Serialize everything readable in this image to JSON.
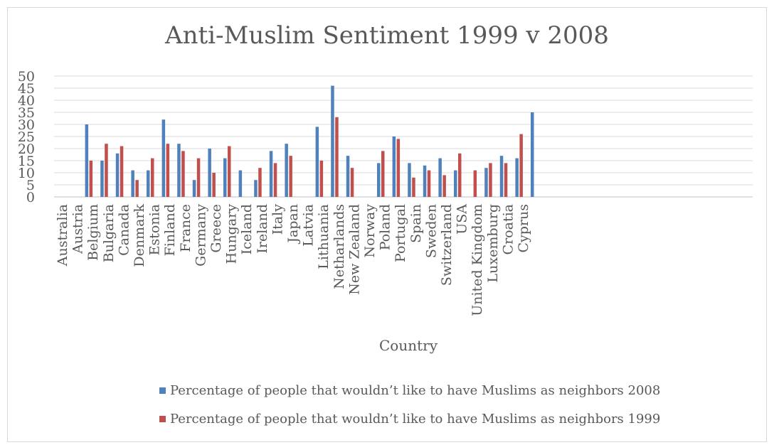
{
  "chart_data": {
    "type": "bar",
    "title": "Anti-Muslim Sentiment 1999 v 2008",
    "xlabel": "Country",
    "ylabel": "",
    "ylim": [
      0,
      50
    ],
    "yticks": [
      0,
      5,
      10,
      15,
      20,
      25,
      30,
      35,
      40,
      45,
      50
    ],
    "grid": true,
    "legend_position": "bottom",
    "categories": [
      "Australia",
      "Austria",
      "Belgium",
      "Bulgaria",
      "Canada",
      "Denmark",
      "Estonia",
      "Finland",
      "France",
      "Germany",
      "Greece",
      "Hungary",
      "Iceland",
      "Ireland",
      "Italy",
      "Japan",
      "Latvia",
      "Lithuania",
      "Netharlands",
      "New Zealand",
      "Norway",
      "Poland",
      "Portugal",
      "Spain",
      "Sweden",
      "Switzerland",
      "USA",
      "United Kingdom",
      "Luxemburg",
      "Croatia",
      "Cyprus"
    ],
    "series": [
      {
        "name": "Percentage of people that wouldn’t like to have Muslims as neighbors 2008",
        "color": "#4f81bd",
        "values": [
          null,
          30,
          15,
          18,
          11,
          11,
          32,
          22,
          7,
          20,
          16,
          11,
          7,
          19,
          22,
          null,
          29,
          46,
          17,
          null,
          14,
          25,
          14,
          13,
          16,
          11,
          null,
          12,
          17,
          16,
          35
        ]
      },
      {
        "name": "Percentage of people that wouldn’t like to have Muslims as neighbors 1999",
        "color": "#c0504d",
        "values": [
          null,
          15,
          22,
          21,
          7,
          16,
          22,
          19,
          16,
          10,
          21,
          null,
          12,
          14,
          17,
          null,
          15,
          33,
          12,
          null,
          19,
          24,
          8,
          11,
          9,
          18,
          11,
          14,
          14,
          26,
          null
        ]
      }
    ]
  }
}
